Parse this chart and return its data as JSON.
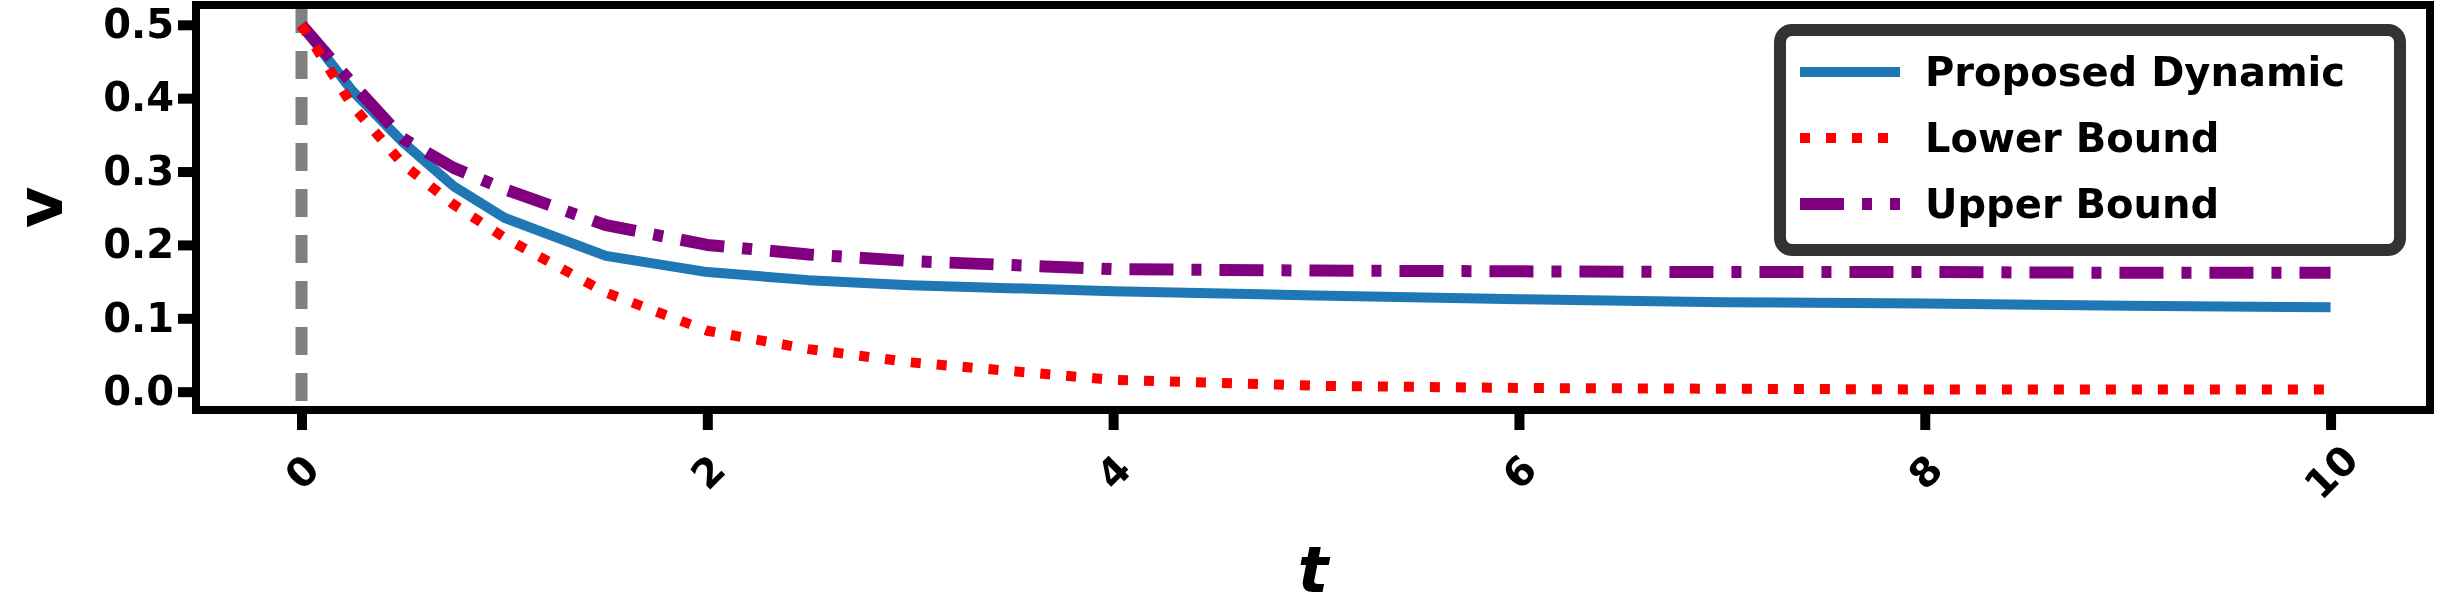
{
  "chart_data": {
    "type": "line",
    "xlabel": "t",
    "ylabel": "v",
    "x": [
      0,
      0.25,
      0.5,
      0.75,
      1,
      1.5,
      2,
      2.5,
      3,
      4,
      5,
      6,
      7,
      8,
      9,
      10
    ],
    "xlim": [
      -0.52,
      10.49
    ],
    "ylim": [
      -0.025,
      0.527
    ],
    "xticks": [
      0,
      2,
      4,
      6,
      8,
      10
    ],
    "yticks": [
      {
        "value": 0,
        "label": "0.0"
      },
      0.1,
      0.2,
      0.3,
      0.4,
      0.5
    ],
    "series": [
      {
        "name": "Proposed Dynamic",
        "color": "#1f77b4",
        "line_style": "solid",
        "values": [
          0.5,
          0.41,
          0.34,
          0.28,
          0.237,
          0.185,
          0.163,
          0.152,
          0.145,
          0.137,
          0.131,
          0.126,
          0.122,
          0.12,
          0.117,
          0.115
        ]
      },
      {
        "name": "Lower Bound",
        "color": "#ff0000",
        "line_style": "dotted",
        "values": [
          0.5,
          0.39,
          0.31,
          0.255,
          0.21,
          0.135,
          0.083,
          0.058,
          0.04,
          0.016,
          0.008,
          0.005,
          0.004,
          0.003,
          0.003,
          0.003
        ]
      },
      {
        "name": "Upper Bound",
        "color": "#800080",
        "line_style": "dashdot",
        "values": [
          0.5,
          0.42,
          0.345,
          0.305,
          0.276,
          0.227,
          0.2,
          0.187,
          0.178,
          0.167,
          0.165,
          0.164,
          0.163,
          0.163,
          0.162,
          0.162
        ]
      }
    ],
    "ref_lines": [
      {
        "axis": "x",
        "value": 0,
        "color": "#808080",
        "line_style": "dashed"
      }
    ],
    "legend": "top right",
    "grid": false
  }
}
